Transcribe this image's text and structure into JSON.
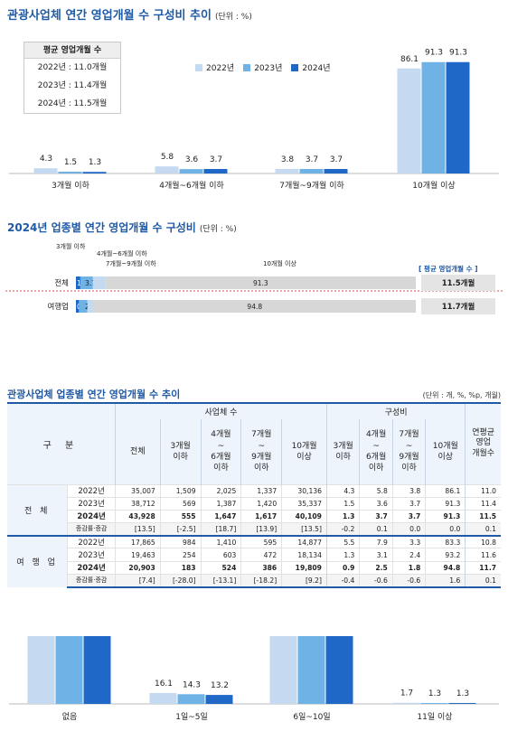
{
  "section1": {
    "title": "관광사업체 연간 영업개월 수 구성비 추이",
    "unit": "(단위 : %)",
    "avg_box": {
      "header": "평균 영업개월 수",
      "lines": [
        "2022년 : 11.0개월",
        "2023년 : 11.4개월",
        "2024년 : 11.5개월"
      ]
    },
    "legend": [
      "2022년",
      "2023년",
      "2024년"
    ]
  },
  "section2": {
    "title": "2024년 업종별 연간 영업개월 수 구성비",
    "unit": "(단위 : %)",
    "segment_tags": [
      "3개월 이하",
      "4개월~6개월 이하",
      "7개월~9개월 이하",
      "10개월 이상"
    ],
    "avg_header": "[ 평균 영업개월 수 ]"
  },
  "section3": {
    "title": "관광사업체 업종별 연간 영업개월 수 추이",
    "unit": "(단위 : 개, %, %p, 개월)",
    "headers": {
      "gubun": "구 분",
      "group_a": "사업체 수",
      "group_b": "구성비",
      "avg": "연평균\n영업\n개월수",
      "cols_a": [
        "전체",
        "3개월\n이하",
        "4개월\n~\n6개월\n이하",
        "7개월\n~\n9개월\n이하",
        "10개월\n이상"
      ],
      "cols_b": [
        "3개월\n이하",
        "4개월\n~\n6개월\n이하",
        "7개월\n~\n9개월\n이하",
        "10개월\n이상"
      ]
    },
    "groups": [
      {
        "label": "전 체",
        "rows": [
          {
            "label": "2022년",
            "vals": [
              "35,007",
              "1,509",
              "2,025",
              "1,337",
              "30,136",
              "4.3",
              "5.8",
              "3.8",
              "86.1",
              "11.0"
            ]
          },
          {
            "label": "2023년",
            "vals": [
              "38,712",
              "569",
              "1,387",
              "1,420",
              "35,337",
              "1.5",
              "3.6",
              "3.7",
              "91.3",
              "11.4"
            ]
          },
          {
            "label": "2024년",
            "vals": [
              "43,928",
              "555",
              "1,647",
              "1,617",
              "40,109",
              "1.3",
              "3.7",
              "3.7",
              "91.3",
              "11.5"
            ]
          },
          {
            "label": "증감률·증감",
            "vals": [
              "[13.5]",
              "[-2.5]",
              "[18.7]",
              "[13.9]",
              "[13.5]",
              "-0.2",
              "0.1",
              "0.0",
              "0.0",
              "0.1"
            ]
          }
        ]
      },
      {
        "label": "여 행 업",
        "rows": [
          {
            "label": "2022년",
            "vals": [
              "17,865",
              "984",
              "1,410",
              "595",
              "14,877",
              "5.5",
              "7.9",
              "3.3",
              "83.3",
              "10.8"
            ]
          },
          {
            "label": "2023년",
            "vals": [
              "19,463",
              "254",
              "603",
              "472",
              "18,134",
              "1.3",
              "3.1",
              "2.4",
              "93.2",
              "11.6"
            ]
          },
          {
            "label": "2024년",
            "vals": [
              "20,903",
              "183",
              "524",
              "386",
              "19,809",
              "0.9",
              "2.5",
              "1.8",
              "94.8",
              "11.7"
            ]
          },
          {
            "label": "증감률·증감",
            "vals": [
              "[7.4]",
              "[-28.0]",
              "[-13.1]",
              "[-18.2]",
              "[9.2]",
              "-0.4",
              "-0.6",
              "-0.6",
              "1.6",
              "0.1"
            ]
          }
        ]
      }
    ]
  },
  "colors": {
    "y2022": "#c5daf0",
    "y2023": "#6fb3e6",
    "y2024": "#1f68c8",
    "accent": "#1f5aa6",
    "bar_gray": "#d7d7d7",
    "seg1": "#1f68c8",
    "seg2": "#6fb3e6",
    "seg3": "#c5daf0"
  },
  "chart_data": [
    {
      "type": "bar",
      "title": "관광사업체 연간 영업개월 수 구성비 추이",
      "categories": [
        "3개월 이하",
        "4개월~6개월 이하",
        "7개월~9개월 이하",
        "10개월 이상"
      ],
      "series": [
        {
          "name": "2022년",
          "values": [
            4.3,
            5.8,
            3.8,
            86.1
          ]
        },
        {
          "name": "2023년",
          "values": [
            1.5,
            3.6,
            3.7,
            91.3
          ]
        },
        {
          "name": "2024년",
          "values": [
            1.3,
            3.7,
            3.7,
            91.3
          ]
        }
      ],
      "ylim": [
        0,
        100
      ],
      "legend": "top-center"
    },
    {
      "type": "bar",
      "stacked": true,
      "orientation": "horizontal",
      "title": "2024년 업종별 연간 영업개월 수 구성비",
      "categories": [
        "전체",
        "여행업"
      ],
      "series": [
        {
          "name": "3개월 이하",
          "values": [
            1.3,
            0.9
          ]
        },
        {
          "name": "4개월~6개월 이하",
          "values": [
            3.7,
            2.5
          ]
        },
        {
          "name": "7개월~9개월 이하",
          "values": [
            3.7,
            1.8
          ]
        },
        {
          "name": "10개월 이상",
          "values": [
            91.3,
            94.8
          ]
        }
      ],
      "avg_months": [
        "11.5개월",
        "11.7개월"
      ],
      "xlim": [
        0,
        100
      ]
    },
    {
      "type": "bar",
      "categories": [
        "없음",
        "1일~5일",
        "6일~10일",
        "11일 이상"
      ],
      "values": [
        null,
        16.1,
        null,
        1.7
      ],
      "series": [
        {
          "values": [
            null,
            16.1,
            null,
            1.7
          ]
        },
        {
          "values": [
            null,
            14.3,
            null,
            1.3
          ]
        },
        {
          "values": [
            null,
            13.2,
            null,
            1.3
          ]
        }
      ],
      "ylim": [
        0,
        100
      ]
    }
  ]
}
